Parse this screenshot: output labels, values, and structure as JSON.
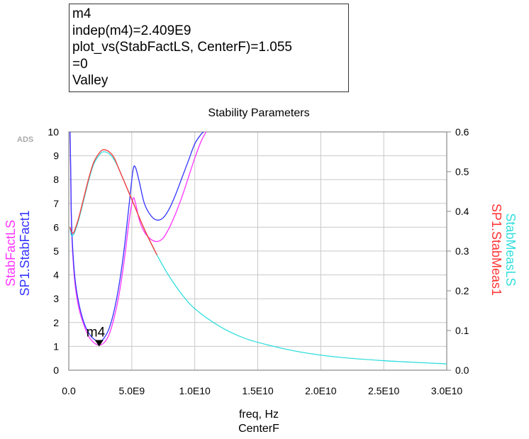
{
  "marker_readout": {
    "line1": "m4",
    "line2": "indep(m4)=2.409E9",
    "line3": "plot_vs(StabFactLS, CenterF)=1.055",
    "line4": "=0",
    "line5": "Valley"
  },
  "watermark": "ADS",
  "colors": {
    "StabFactLS": "#ff33ff",
    "SP1.StabFact1": "#3333ff",
    "StabMeasLS": "#33dddd",
    "SP1.StabMeas1": "#ff3333",
    "grid": "#c8c8c8",
    "axis": "#888888"
  },
  "chart_data": {
    "type": "line",
    "title": "Stability Parameters",
    "xlabel": "freq, Hz",
    "xlabel2": "CenterF",
    "left_axis_labels": [
      "StabFactLS",
      "SP1.StabFact1"
    ],
    "right_axis_labels": [
      "StabMeasLS",
      "SP1.StabMeas1"
    ],
    "xlim": [
      0,
      30000000000.0
    ],
    "ylim_left": [
      0,
      10
    ],
    "ylim_right": [
      0,
      0.6
    ],
    "grid": true,
    "x_tick_labels": [
      "0.0",
      "5.0E9",
      "1.0E10",
      "1.5E10",
      "2.0E10",
      "2.5E10",
      "3.0E10"
    ],
    "x_ticks": [
      0,
      5000000000.0,
      10000000000.0,
      15000000000.0,
      20000000000.0,
      25000000000.0,
      30000000000.0
    ],
    "y_left_tick_labels": [
      "0",
      "1",
      "2",
      "3",
      "4",
      "5",
      "6",
      "7",
      "8",
      "9",
      "10"
    ],
    "y_left_ticks": [
      0,
      1,
      2,
      3,
      4,
      5,
      6,
      7,
      8,
      9,
      10
    ],
    "y_right_tick_labels": [
      "0.0",
      "0.1",
      "0.2",
      "0.3",
      "0.4",
      "0.5",
      "0.6"
    ],
    "y_right_ticks": [
      0,
      0.1,
      0.2,
      0.3,
      0.4,
      0.5,
      0.6
    ],
    "series": [
      {
        "name": "StabFactLS",
        "axis": "left",
        "x": [
          100000000.0,
          160000000.0,
          200000000.0,
          300000000.0,
          500000000.0,
          800000000.0,
          1200000000.0,
          1600000000.0,
          2000000000.0,
          2409000000.0,
          2800000000.0,
          3200000000.0,
          3600000000.0,
          4000000000.0,
          4400000000.0,
          4800000000.0,
          5100000000.0,
          5300000000.0,
          5600000000.0,
          6000000000.0,
          6500000000.0,
          7000000000.0,
          7500000000.0,
          8000000000.0,
          8500000000.0,
          9000000000.0,
          9500000000.0,
          10000000000.0,
          10500000000.0,
          10900000000.0
        ],
        "y": [
          10,
          8.0,
          6.4,
          5.0,
          3.6,
          2.6,
          1.9,
          1.4,
          1.15,
          1.055,
          1.15,
          1.5,
          2.2,
          3.2,
          4.6,
          6.3,
          7.2,
          7.0,
          6.3,
          5.8,
          5.5,
          5.4,
          5.55,
          6.0,
          6.6,
          7.3,
          8.1,
          8.9,
          9.6,
          10
        ]
      },
      {
        "name": "SP1.StabFact1",
        "axis": "left",
        "x": [
          100000000.0,
          160000000.0,
          200000000.0,
          300000000.0,
          500000000.0,
          800000000.0,
          1200000000.0,
          1600000000.0,
          2000000000.0,
          2450000000.0,
          2800000000.0,
          3200000000.0,
          3600000000.0,
          4000000000.0,
          4400000000.0,
          4800000000.0,
          5100000000.0,
          5300000000.0,
          5600000000.0,
          6000000000.0,
          6500000000.0,
          7000000000.0,
          7500000000.0,
          8000000000.0,
          8500000000.0,
          9000000000.0,
          9500000000.0,
          10000000000.0,
          10500000000.0,
          10700000000.0
        ],
        "y": [
          10,
          8.2,
          6.6,
          5.2,
          3.8,
          2.8,
          2.0,
          1.55,
          1.3,
          1.2,
          1.35,
          1.75,
          2.5,
          3.6,
          5.1,
          7.0,
          8.4,
          8.5,
          7.9,
          7.0,
          6.5,
          6.3,
          6.4,
          6.8,
          7.4,
          8.1,
          8.8,
          9.5,
          9.9,
          10
        ]
      },
      {
        "name": "StabMeasLS",
        "axis": "right",
        "x": [
          100000000.0,
          200000000.0,
          350000000.0,
          500000000.0,
          800000000.0,
          1200000000.0,
          1600000000.0,
          2000000000.0,
          2500000000.0,
          2800000000.0,
          3200000000.0,
          3600000000.0,
          4000000000.0,
          5000000000.0,
          6000000000.0,
          7000000000.0,
          8000000000.0,
          9000000000.0,
          10000000000.0,
          12000000000.0,
          14000000000.0,
          16000000000.0,
          18000000000.0,
          20000000000.0,
          22000000000.0,
          25000000000.0,
          28000000000.0,
          30000000000.0
        ],
        "y": [
          0.36,
          0.34,
          0.34,
          0.35,
          0.38,
          0.43,
          0.48,
          0.52,
          0.545,
          0.55,
          0.545,
          0.53,
          0.505,
          0.43,
          0.355,
          0.29,
          0.235,
          0.19,
          0.155,
          0.11,
          0.08,
          0.062,
          0.048,
          0.038,
          0.031,
          0.024,
          0.019,
          0.016
        ]
      },
      {
        "name": "SP1.StabMeas1",
        "axis": "right",
        "x": [
          100000000.0,
          200000000.0,
          350000000.0,
          500000000.0,
          800000000.0,
          1200000000.0,
          1600000000.0,
          2000000000.0,
          2500000000.0,
          2800000000.0,
          3200000000.0,
          3600000000.0,
          4000000000.0,
          5000000000.0,
          6000000000.0,
          7000000000.0
        ],
        "y": [
          0.36,
          0.35,
          0.345,
          0.355,
          0.385,
          0.435,
          0.485,
          0.525,
          0.55,
          0.555,
          0.55,
          0.535,
          0.505,
          0.43,
          0.355,
          0.29
        ]
      }
    ],
    "markers": [
      {
        "name": "m4",
        "x": 2409000000.0,
        "y": 1.055,
        "axis": "left",
        "label": "m4"
      }
    ]
  }
}
